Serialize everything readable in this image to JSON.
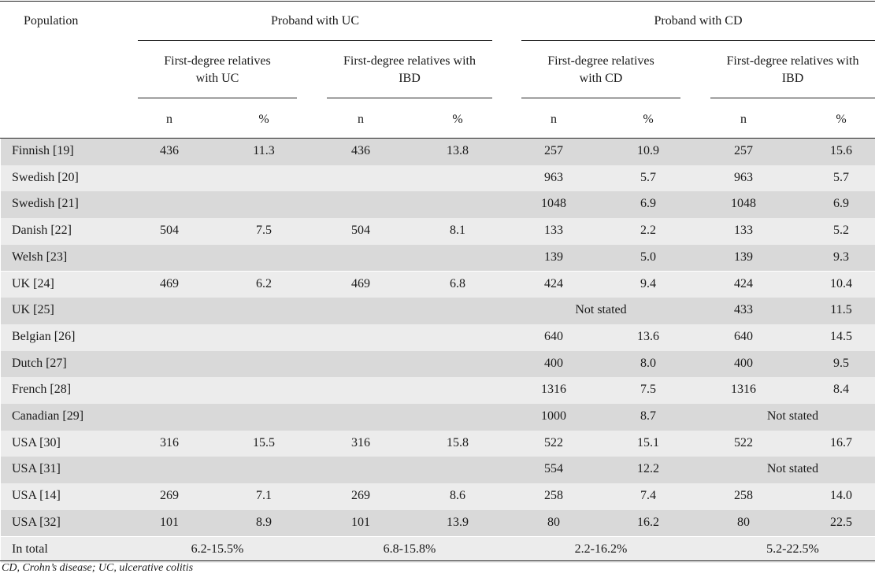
{
  "header": {
    "population_label": "Population",
    "groups": [
      "Proband with UC",
      "Proband with CD"
    ],
    "subgroups": [
      {
        "line1": "First-degree relatives",
        "line2": "with UC"
      },
      {
        "line1": "First-degree relatives with",
        "line2": "IBD"
      },
      {
        "line1": "First-degree relatives",
        "line2": "with CD"
      },
      {
        "line1": "First-degree relatives with",
        "line2": "IBD"
      }
    ],
    "n_label": "n",
    "pct_label": "%"
  },
  "rows": [
    {
      "population": "Finnish [19]",
      "uc_n": "436",
      "uc_pct": "11.3",
      "ucibd_n": "436",
      "ucibd_pct": "13.8",
      "cd_n": "257",
      "cd_pct": "10.9",
      "cdibd_n": "257",
      "cdibd_pct": "15.6"
    },
    {
      "population": "Swedish [20]",
      "uc_n": "",
      "uc_pct": "",
      "ucibd_n": "",
      "ucibd_pct": "",
      "cd_n": "963",
      "cd_pct": "5.7",
      "cdibd_n": "963",
      "cdibd_pct": "5.7"
    },
    {
      "population": "Swedish [21]",
      "uc_n": "",
      "uc_pct": "",
      "ucibd_n": "",
      "ucibd_pct": "",
      "cd_n": "1048",
      "cd_pct": "6.9",
      "cdibd_n": "1048",
      "cdibd_pct": "6.9"
    },
    {
      "population": "Danish [22]",
      "uc_n": "504",
      "uc_pct": "7.5",
      "ucibd_n": "504",
      "ucibd_pct": "8.1",
      "cd_n": "133",
      "cd_pct": "2.2",
      "cdibd_n": "133",
      "cdibd_pct": "5.2"
    },
    {
      "population": "Welsh [23]",
      "uc_n": "",
      "uc_pct": "",
      "ucibd_n": "",
      "ucibd_pct": "",
      "cd_n": "139",
      "cd_pct": "5.0",
      "cdibd_n": "139",
      "cdibd_pct": "9.3"
    },
    {
      "population": "UK [24]",
      "uc_n": "469",
      "uc_pct": "6.2",
      "ucibd_n": "469",
      "ucibd_pct": "6.8",
      "cd_n": "424",
      "cd_pct": "9.4",
      "cdibd_n": "424",
      "cdibd_pct": "10.4"
    },
    {
      "population": "UK [25]",
      "uc_n": "",
      "uc_pct": "",
      "ucibd_n": "",
      "ucibd_pct": "",
      "cd_merged": "Not stated",
      "cdibd_n": "433",
      "cdibd_pct": "11.5"
    },
    {
      "population": "Belgian [26]",
      "uc_n": "",
      "uc_pct": "",
      "ucibd_n": "",
      "ucibd_pct": "",
      "cd_n": "640",
      "cd_pct": "13.6",
      "cdibd_n": "640",
      "cdibd_pct": "14.5"
    },
    {
      "population": "Dutch [27]",
      "uc_n": "",
      "uc_pct": "",
      "ucibd_n": "",
      "ucibd_pct": "",
      "cd_n": "400",
      "cd_pct": "8.0",
      "cdibd_n": "400",
      "cdibd_pct": "9.5"
    },
    {
      "population": "French [28]",
      "uc_n": "",
      "uc_pct": "",
      "ucibd_n": "",
      "ucibd_pct": "",
      "cd_n": "1316",
      "cd_pct": "7.5",
      "cdibd_n": "1316",
      "cdibd_pct": "8.4"
    },
    {
      "population": "Canadian [29]",
      "uc_n": "",
      "uc_pct": "",
      "ucibd_n": "",
      "ucibd_pct": "",
      "cd_n": "1000",
      "cd_pct": "8.7",
      "cdibd_merged": "Not stated"
    },
    {
      "population": "USA [30]",
      "uc_n": "316",
      "uc_pct": "15.5",
      "ucibd_n": "316",
      "ucibd_pct": "15.8",
      "cd_n": "522",
      "cd_pct": "15.1",
      "cdibd_n": "522",
      "cdibd_pct": "16.7"
    },
    {
      "population": "USA [31]",
      "uc_n": "",
      "uc_pct": "",
      "ucibd_n": "",
      "ucibd_pct": "",
      "cd_n": "554",
      "cd_pct": "12.2",
      "cdibd_merged": "Not stated"
    },
    {
      "population": "USA [14]",
      "uc_n": "269",
      "uc_pct": "7.1",
      "ucibd_n": "269",
      "ucibd_pct": "8.6",
      "cd_n": "258",
      "cd_pct": "7.4",
      "cdibd_n": "258",
      "cdibd_pct": "14.0"
    },
    {
      "population": "USA [32]",
      "uc_n": "101",
      "uc_pct": "8.9",
      "ucibd_n": "101",
      "ucibd_pct": "13.9",
      "cd_n": "80",
      "cd_pct": "16.2",
      "cdibd_n": "80",
      "cdibd_pct": "22.5"
    }
  ],
  "total": {
    "label": "In total",
    "uc": "6.2-15.5%",
    "ucibd": "6.8-15.8%",
    "cd": "2.2-16.2%",
    "cdibd": "5.2-22.5%"
  },
  "footnote": "CD, Crohn’s disease; UC, ulcerative colitis",
  "colors": {
    "band_dark": "#d9d9d9",
    "band_light": "#ececec"
  }
}
